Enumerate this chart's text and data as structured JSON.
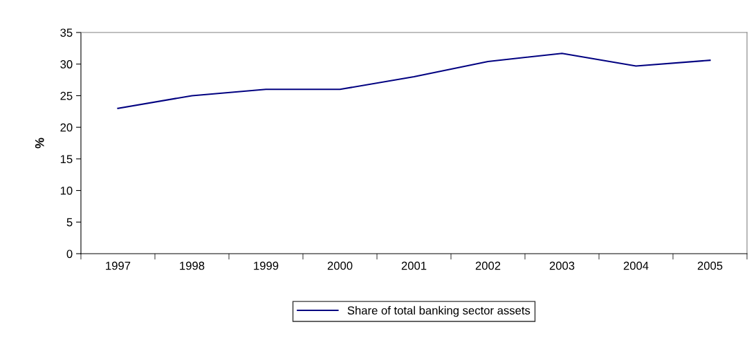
{
  "chart_data": {
    "type": "line",
    "ylabel": "%",
    "categories": [
      "1997",
      "1998",
      "1999",
      "2000",
      "2001",
      "2002",
      "2003",
      "2004",
      "2005"
    ],
    "series": [
      {
        "name": "Share of total banking sector assets",
        "color": "#000080",
        "values": [
          23.0,
          25.0,
          26.0,
          26.0,
          28.0,
          30.4,
          31.7,
          29.7,
          30.6
        ]
      }
    ],
    "ylim": [
      0,
      35
    ],
    "yticks": [
      0,
      5,
      10,
      15,
      20,
      25,
      30,
      35
    ],
    "grid": false,
    "legend": "bottom",
    "marker": "none",
    "line_style": "solid"
  }
}
